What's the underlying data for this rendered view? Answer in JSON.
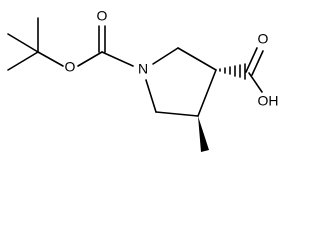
{
  "atoms": [
    {
      "label": "O"
    },
    {
      "label": "O"
    },
    {
      "label": "N"
    },
    {
      "label": "O"
    },
    {
      "label": "OH"
    }
  ]
}
